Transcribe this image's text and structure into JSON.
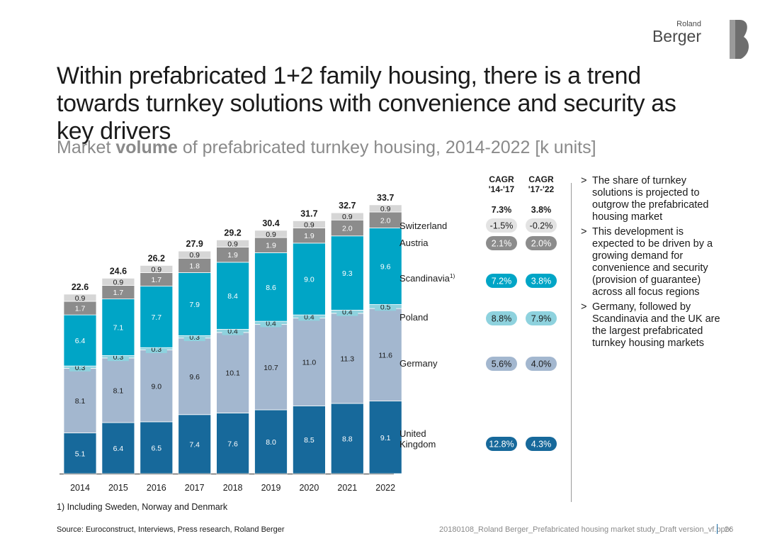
{
  "header": {
    "title": "Within prefabricated 1+2 family housing, there is a trend towards turnkey solutions with convenience and security as key drivers",
    "subtitle_pre": "Market ",
    "subtitle_bold": "volume",
    "subtitle_post": " of prefabricated turnkey housing, 2014-2022 [k units]"
  },
  "logo": {
    "small": "Roland",
    "big": "Berger"
  },
  "chart_data": {
    "type": "bar",
    "stacked": true,
    "categories": [
      "2014",
      "2015",
      "2016",
      "2017",
      "2018",
      "2019",
      "2020",
      "2021",
      "2022"
    ],
    "totals": [
      "22.6",
      "24.6",
      "26.2",
      "27.9",
      "29.2",
      "30.4",
      "31.7",
      "32.7",
      "33.7"
    ],
    "series": [
      {
        "name": "United Kingdom",
        "label": "United\nKingdom",
        "color": "#17699b",
        "values": [
          5.1,
          6.4,
          6.5,
          7.4,
          7.6,
          8.0,
          8.5,
          8.8,
          9.1
        ],
        "labels": [
          "5.1",
          "6.4",
          "6.5",
          "7.4",
          "7.6",
          "8.0",
          "8.5",
          "8.8",
          "9.1"
        ]
      },
      {
        "name": "Germany",
        "label": "Germany",
        "color": "#a3b7cf",
        "values": [
          8.1,
          8.1,
          9.0,
          9.6,
          10.1,
          10.7,
          11.0,
          11.3,
          11.6
        ],
        "labels": [
          "8.1",
          "8.1",
          "9.0",
          "9.6",
          "10.1",
          "10.7",
          "11.0",
          "11.3",
          "11.6"
        ]
      },
      {
        "name": "Poland",
        "label": "Poland",
        "color": "#8ed2de",
        "values": [
          0.3,
          0.3,
          0.3,
          0.3,
          0.4,
          0.4,
          0.4,
          0.4,
          0.5
        ],
        "labels": [
          "0.3",
          "0.3",
          "0.3",
          "0.3",
          "0.4",
          "0.4",
          "0.4",
          "0.4",
          "0.5"
        ]
      },
      {
        "name": "Scandinavia",
        "label": "Scandinavia",
        "sup": "1)",
        "color": "#00a5c6",
        "values": [
          6.4,
          7.1,
          7.7,
          7.9,
          8.4,
          8.6,
          9.0,
          9.3,
          9.6
        ],
        "labels": [
          "6.4",
          "7.1",
          "7.7",
          "7.9",
          "8.4",
          "8.6",
          "9.0",
          "9.3",
          "9.6"
        ]
      },
      {
        "name": "Austria",
        "label": "Austria",
        "color": "#8c8c8c",
        "values": [
          1.7,
          1.7,
          1.7,
          1.8,
          1.9,
          1.9,
          1.9,
          2.0,
          2.0
        ],
        "labels": [
          "1.7",
          "1.7",
          "1.7",
          "1.8",
          "1.9",
          "1.9",
          "1.9",
          "2.0",
          "2.0"
        ]
      },
      {
        "name": "Switzerland",
        "label": "Switzerland",
        "color": "#d6d6d6",
        "values": [
          0.9,
          0.9,
          0.9,
          0.9,
          0.9,
          0.9,
          0.9,
          0.9,
          0.9
        ],
        "labels": [
          "0.9",
          "0.9",
          "0.9",
          "0.9",
          "0.9",
          "0.9",
          "0.9",
          "0.9",
          "0.9"
        ]
      }
    ],
    "cagr": {
      "headers": [
        "CAGR\n'14-'17",
        "CAGR\n'17-'22"
      ],
      "totals": [
        "7.3%",
        "3.8%"
      ],
      "rows": [
        {
          "region": "Switzerland",
          "a": "-1.5%",
          "b": "-0.2%",
          "style": "light"
        },
        {
          "region": "Austria",
          "a": "2.1%",
          "b": "2.0%",
          "style": "mid"
        },
        {
          "region": "Scandinavia",
          "a": "7.2%",
          "b": "3.8%",
          "style": "teal"
        },
        {
          "region": "Poland",
          "a": "8.8%",
          "b": "7.9%",
          "style": "lightteal"
        },
        {
          "region": "Germany",
          "a": "5.6%",
          "b": "4.0%",
          "style": "grayblue"
        },
        {
          "region": "United Kingdom",
          "a": "12.8%",
          "b": "4.3%",
          "style": "blue"
        }
      ]
    }
  },
  "bullets": [
    "The share of turnkey solutions is projected to outgrow the prefabricated housing market",
    "This development is expected to be driven by a growing demand for convenience and security (provision of guarantee) across all focus regions",
    "Germany, followed by Scandinavia and the UK are the largest prefabricated turnkey housing markets"
  ],
  "bullet_marker": ">",
  "footnote": "1) Including Sweden, Norway and Denmark",
  "source": "Source: Euroconstruct, Interviews, Press research, Roland Berger",
  "docname": "20180108_Roland Berger_Prefabricated housing market study_Draft version_vf.pptx",
  "page": "26",
  "colors": {
    "accent": "#17699b",
    "logo": "#4a4a4a"
  }
}
